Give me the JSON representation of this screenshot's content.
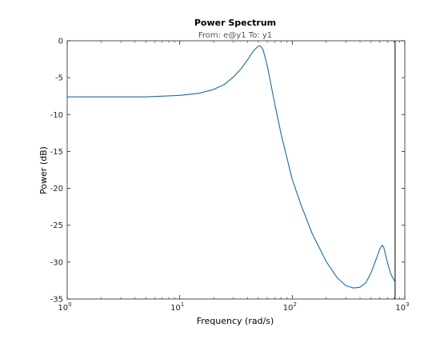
{
  "chart_data": {
    "type": "line",
    "title": "Power Spectrum",
    "subtitle": "From: e@y1  To: y1",
    "xlabel": "Frequency  (rad/s)",
    "ylabel": "Power (dB)",
    "xscale": "log",
    "xlim": [
      1,
      1000
    ],
    "ylim": [
      -35,
      0
    ],
    "x_ticks": [
      {
        "value": 1,
        "base": "10",
        "exp": "0"
      },
      {
        "value": 10,
        "base": "10",
        "exp": "1"
      },
      {
        "value": 100,
        "base": "10",
        "exp": "2"
      },
      {
        "value": 1000,
        "base": "10",
        "exp": "3"
      }
    ],
    "y_ticks": [
      0,
      -5,
      -10,
      -15,
      -20,
      -25,
      -30,
      -35
    ],
    "y_tick_labels": [
      "0",
      "-5",
      "-10",
      "-15",
      "-20",
      "-25",
      "-30",
      "-35"
    ],
    "grid": false,
    "vertical_line_x": 820,
    "series": [
      {
        "color": "#1a6aa8",
        "x": [
          1,
          2,
          5,
          10,
          15,
          20,
          25,
          30,
          35,
          40,
          45,
          50,
          52,
          55,
          60,
          70,
          80,
          100,
          120,
          150,
          200,
          250,
          300,
          350,
          400,
          450,
          500,
          550,
          600,
          630,
          650,
          700,
          750,
          800,
          820
        ],
        "y": [
          -7.6,
          -7.6,
          -7.6,
          -7.4,
          -7.1,
          -6.6,
          -5.9,
          -4.9,
          -3.8,
          -2.6,
          -1.4,
          -0.7,
          -0.7,
          -1.2,
          -3.4,
          -8.6,
          -12.8,
          -18.8,
          -22.3,
          -26.1,
          -29.9,
          -32.1,
          -33.2,
          -33.5,
          -33.4,
          -32.8,
          -31.5,
          -29.8,
          -28.2,
          -27.7,
          -28.0,
          -30.0,
          -31.6,
          -32.4,
          -32.6
        ]
      }
    ]
  }
}
